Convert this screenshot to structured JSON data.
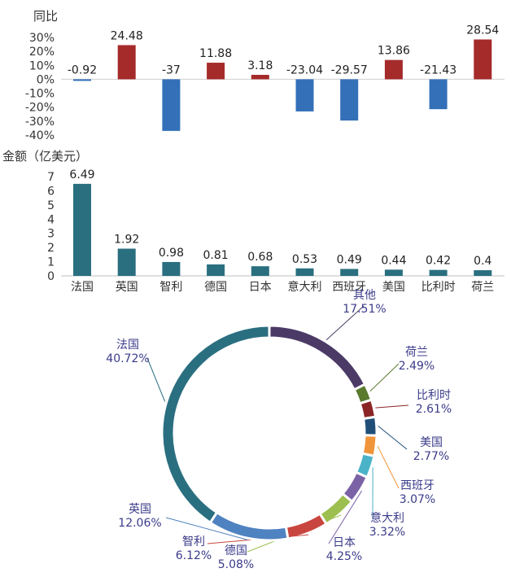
{
  "chart_data": [
    {
      "type": "bar",
      "ylabel": "同比",
      "yticks": [
        "30%",
        "20%",
        "10%",
        "0%",
        "-10%",
        "-20%",
        "-30%",
        "-40%"
      ],
      "ylim": [
        -40,
        30
      ],
      "categories": [
        "法国",
        "英国",
        "智利",
        "德国",
        "日本",
        "意大利",
        "西班牙",
        "美国",
        "比利时",
        "荷兰"
      ],
      "values": [
        -0.92,
        24.48,
        -37,
        11.88,
        3.18,
        -23.04,
        -29.57,
        13.86,
        -21.43,
        28.54
      ],
      "value_labels": [
        "-0.92",
        "24.48",
        "-37",
        "11.88",
        "3.18",
        "-23.04",
        "-29.57",
        "13.86",
        "-21.43",
        "28.54"
      ],
      "colors": {
        "positive": "#a52a2a",
        "negative": "#3370b8"
      }
    },
    {
      "type": "bar",
      "ylabel": "金额（亿美元）",
      "yticks": [
        "7",
        "6",
        "5",
        "4",
        "3",
        "2",
        "1",
        "0"
      ],
      "ylim": [
        0,
        7
      ],
      "categories": [
        "法国",
        "英国",
        "智利",
        "德国",
        "日本",
        "意大利",
        "西班牙",
        "美国",
        "比利时",
        "荷兰"
      ],
      "values": [
        6.49,
        1.92,
        0.98,
        0.81,
        0.68,
        0.53,
        0.49,
        0.44,
        0.42,
        0.4
      ],
      "value_labels": [
        "6.49",
        "1.92",
        "0.98",
        "0.81",
        "0.68",
        "0.53",
        "0.49",
        "0.44",
        "0.42",
        "0.4"
      ],
      "color": "#2a6f80"
    },
    {
      "type": "pie",
      "style": "donut",
      "slices": [
        {
          "name": "其他",
          "value": 17.51,
          "label": "17.51%",
          "color": "#4b3a66"
        },
        {
          "name": "荷兰",
          "value": 2.49,
          "label": "2.49%",
          "color": "#5a7a2e"
        },
        {
          "name": "比利时",
          "value": 2.61,
          "label": "2.61%",
          "color": "#8b2525"
        },
        {
          "name": "美国",
          "value": 2.77,
          "label": "2.77%",
          "color": "#1f4f78"
        },
        {
          "name": "西班牙",
          "value": 3.07,
          "label": "3.07%",
          "color": "#f0953a"
        },
        {
          "name": "意大利",
          "value": 3.32,
          "label": "3.32%",
          "color": "#4bb3c8"
        },
        {
          "name": "日本",
          "value": 4.25,
          "label": "4.25%",
          "color": "#7b62a6"
        },
        {
          "name": "德国",
          "value": 5.08,
          "label": "5.08%",
          "color": "#9cbf4f"
        },
        {
          "name": "智利",
          "value": 6.12,
          "label": "6.12%",
          "color": "#c8463f"
        },
        {
          "name": "英国",
          "value": 12.06,
          "label": "12.06%",
          "color": "#4f82c0"
        },
        {
          "name": "法国",
          "value": 40.72,
          "label": "40.72%",
          "color": "#2a6f80"
        }
      ]
    }
  ]
}
